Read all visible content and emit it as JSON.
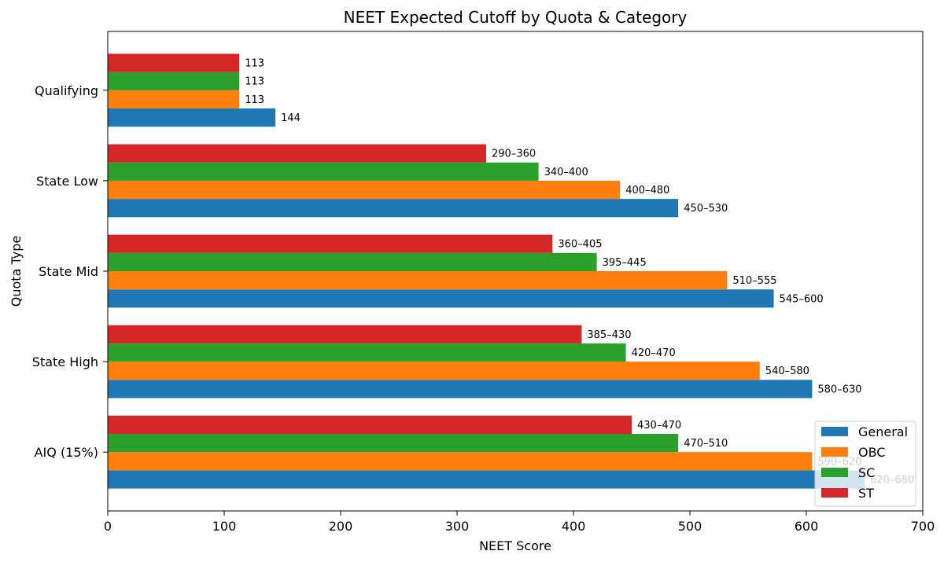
{
  "chart_data": {
    "type": "bar",
    "orientation": "horizontal",
    "title": "NEET Expected Cutoff by Quota & Category",
    "xlabel": "NEET Score",
    "ylabel": "Quota Type",
    "xlim": [
      0,
      700
    ],
    "xticks": [
      0,
      100,
      200,
      300,
      400,
      500,
      600,
      700
    ],
    "categories": [
      "AIQ (15%)",
      "State High",
      "State Mid",
      "State Low",
      "Qualifying"
    ],
    "series": [
      {
        "name": "General",
        "color": "#1f77b4",
        "values": [
          650,
          605,
          572,
          490,
          144
        ],
        "labels": [
          "620–680",
          "580–630",
          "545–600",
          "450–530",
          "144"
        ]
      },
      {
        "name": "OBC",
        "color": "#ff7f0e",
        "values": [
          605,
          560,
          532,
          440,
          113
        ],
        "labels": [
          "590–620",
          "540–580",
          "510–555",
          "400–480",
          "113"
        ]
      },
      {
        "name": "SC",
        "color": "#2ca02c",
        "values": [
          490,
          445,
          420,
          370,
          113
        ],
        "labels": [
          "470–510",
          "420–470",
          "395–445",
          "340–400",
          "113"
        ]
      },
      {
        "name": "ST",
        "color": "#d62728",
        "values": [
          450,
          407,
          382,
          325,
          113
        ],
        "labels": [
          "430–470",
          "385–430",
          "360–405",
          "290–360",
          "113"
        ]
      }
    ],
    "legend": {
      "position": "bottom-right",
      "entries": [
        "General",
        "OBC",
        "SC",
        "ST"
      ]
    },
    "grid": false
  }
}
